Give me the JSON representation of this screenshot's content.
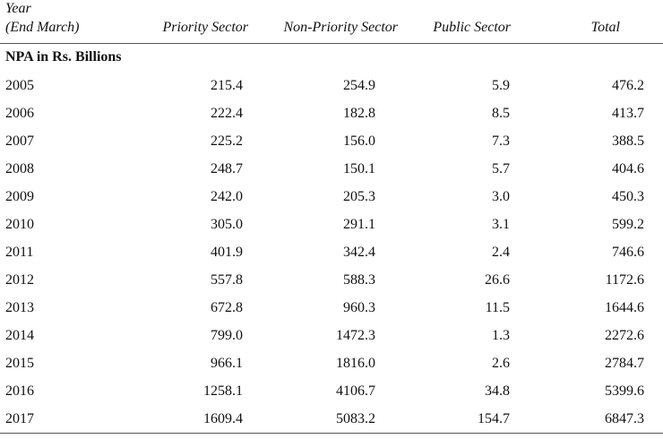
{
  "header": {
    "year_line1": "Year",
    "year_line2": "(End March)",
    "columns": [
      "Priority Sector",
      "Non-Priority Sector",
      "Public Sector",
      "Total"
    ]
  },
  "section_title": "NPA in Rs. Billions",
  "rows": [
    [
      "2005",
      "215.4",
      "254.9",
      "5.9",
      "476.2"
    ],
    [
      "2006",
      "222.4",
      "182.8",
      "8.5",
      "413.7"
    ],
    [
      "2007",
      "225.2",
      "156.0",
      "7.3",
      "388.5"
    ],
    [
      "2008",
      "248.7",
      "150.1",
      "5.7",
      "404.6"
    ],
    [
      "2009",
      "242.0",
      "205.3",
      "3.0",
      "450.3"
    ],
    [
      "2010",
      "305.0",
      "291.1",
      "3.1",
      "599.2"
    ],
    [
      "2011",
      "401.9",
      "342.4",
      "2.4",
      "746.6"
    ],
    [
      "2012",
      "557.8",
      "588.3",
      "26.6",
      "1172.6"
    ],
    [
      "2013",
      "672.8",
      "960.3",
      "11.5",
      "1644.6"
    ],
    [
      "2014",
      "799.0",
      "1472.3",
      "1.3",
      "2272.6"
    ],
    [
      "2015",
      "966.1",
      "1816.0",
      "2.6",
      "2784.7"
    ],
    [
      "2016",
      "1258.1",
      "4106.7",
      "34.8",
      "5399.6"
    ],
    [
      "2017",
      "1609.4",
      "5083.2",
      "154.7",
      "6847.3"
    ]
  ]
}
